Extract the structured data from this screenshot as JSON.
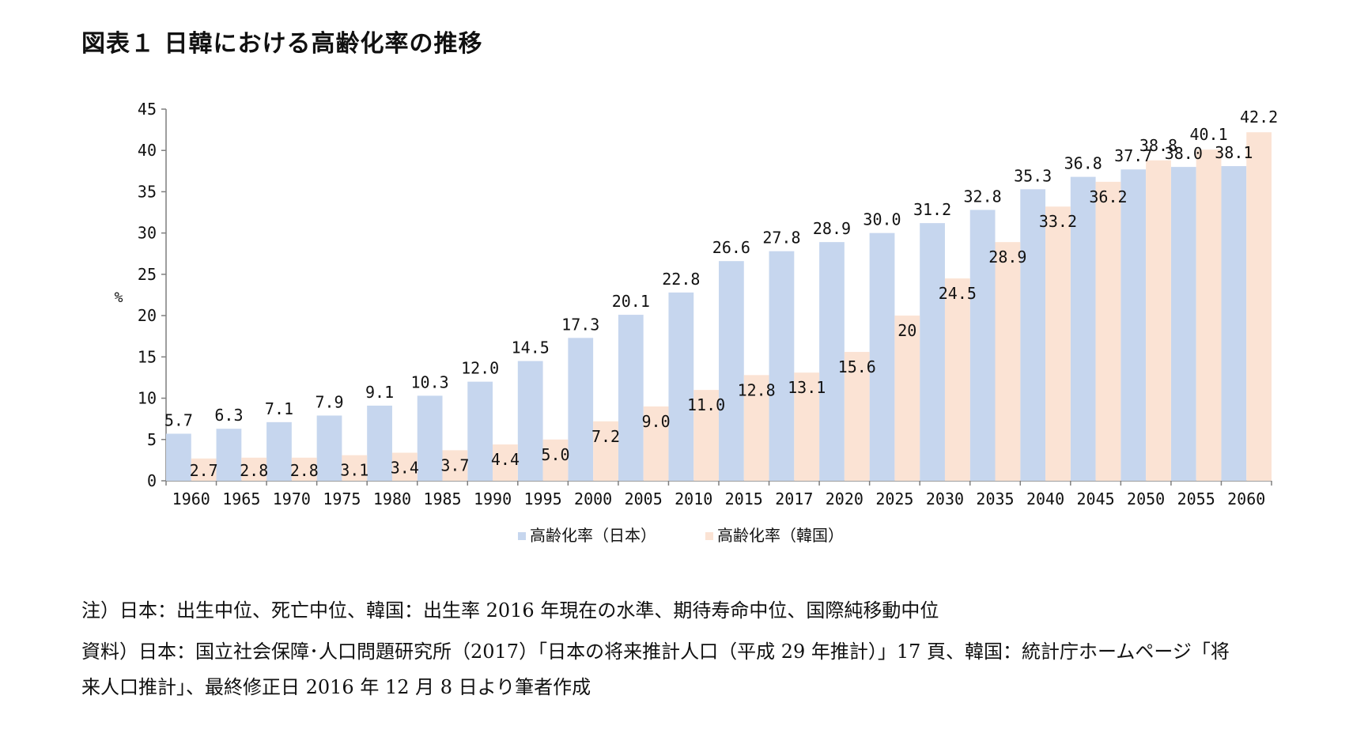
{
  "title": "図表１ 日韓における高齢化率の推移",
  "notes": {
    "line1": "注）日本：出生中位、死亡中位、韓国：出生率 2016 年現在の水準、期待寿命中位、国際純移動中位",
    "line2": "資料）日本：国立社会保障･人口問題研究所（2017）「日本の将来推計人口（平成 29 年推計）」17 頁、韓国：統計庁ホームページ「将",
    "line3": "来人口推計」、最終修正日 2016 年 12 月 8 日より筆者作成"
  },
  "colors": {
    "japan": "#c6d6ee",
    "korea": "#fbe3d4",
    "axis": "#7f7f7f",
    "text": "#111111"
  },
  "chart_data": {
    "type": "bar",
    "ylabel": "%",
    "ylim": [
      0,
      45
    ],
    "yticks": [
      0,
      5,
      10,
      15,
      20,
      25,
      30,
      35,
      40,
      45
    ],
    "grid": false,
    "legend_position": "bottom",
    "categories": [
      "1960",
      "1965",
      "1970",
      "1975",
      "1980",
      "1985",
      "1990",
      "1995",
      "2000",
      "2005",
      "2010",
      "2015",
      "2017",
      "2020",
      "2025",
      "2030",
      "2035",
      "2040",
      "2045",
      "2050",
      "2055",
      "2060"
    ],
    "series": [
      {
        "name": "高齢化率（日本）",
        "values": [
          5.7,
          6.3,
          7.1,
          7.9,
          9.1,
          10.3,
          12.0,
          14.5,
          17.3,
          20.1,
          22.8,
          26.6,
          27.8,
          28.9,
          30.0,
          31.2,
          32.8,
          35.3,
          36.8,
          37.7,
          38.0,
          38.1
        ],
        "labels": [
          "5.7",
          "6.3",
          "7.1",
          "7.9",
          "9.1",
          "10.3",
          "12.0",
          "14.5",
          "17.3",
          "20.1",
          "22.8",
          "26.6",
          "27.8",
          "28.9",
          "30.0",
          "31.2",
          "32.8",
          "35.3",
          "36.8",
          "37.7",
          "38.0",
          "38.1"
        ]
      },
      {
        "name": "高齢化率（韓国）",
        "values": [
          2.7,
          2.8,
          2.8,
          3.1,
          3.4,
          3.7,
          4.4,
          5.0,
          7.2,
          9.0,
          11.0,
          12.8,
          13.1,
          15.6,
          20,
          24.5,
          28.9,
          33.2,
          36.2,
          38.8,
          40.1,
          42.2
        ],
        "labels": [
          "2.7",
          "2.8",
          "2.8",
          "3.1",
          "3.4",
          "3.7",
          "4.4",
          "5.0",
          "7.2",
          "9.0",
          "11.0",
          "12.8",
          "13.1",
          "15.6",
          "20",
          "24.5",
          "28.9",
          "33.2",
          "36.2",
          "38.8",
          "40.1",
          "42.2"
        ]
      }
    ]
  }
}
